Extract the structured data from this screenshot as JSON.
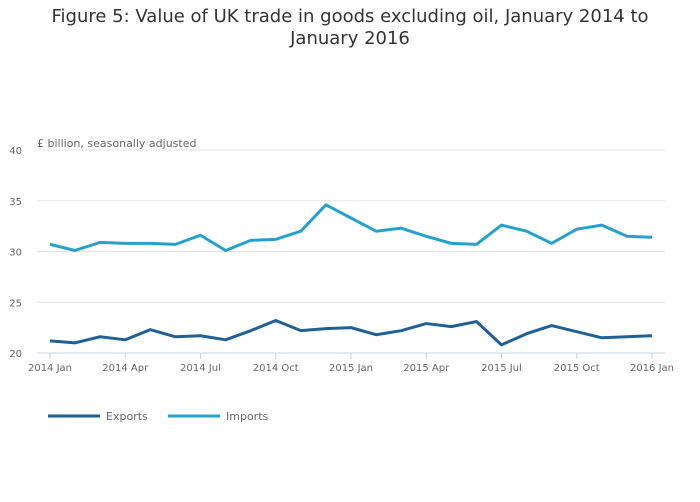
{
  "chart_data": {
    "type": "line",
    "title": "Figure 5: Value of UK trade in goods excluding oil, January 2014 to January 2016",
    "ylabel": "£ billion, seasonally adjusted",
    "xlabel": "",
    "ylim": [
      20,
      40
    ],
    "yticks": [
      20,
      25,
      30,
      35,
      40
    ],
    "grid": true,
    "legend_position": "bottom-left",
    "x": [
      "2014 Jan",
      "2014 Feb",
      "2014 Mar",
      "2014 Apr",
      "2014 May",
      "2014 Jun",
      "2014 Jul",
      "2014 Aug",
      "2014 Sep",
      "2014 Oct",
      "2014 Nov",
      "2014 Dec",
      "2015 Jan",
      "2015 Feb",
      "2015 Mar",
      "2015 Apr",
      "2015 May",
      "2015 Jun",
      "2015 Jul",
      "2015 Aug",
      "2015 Sep",
      "2015 Oct",
      "2015 Nov",
      "2015 Dec",
      "2016 Jan"
    ],
    "xtick_labels": [
      "2014 Jan",
      "2014 Apr",
      "2014 Jul",
      "2014 Oct",
      "2015 Jan",
      "2015 Apr",
      "2015 Jul",
      "2015 Oct",
      "2016 Jan"
    ],
    "series": [
      {
        "name": "Exports",
        "color": "#206095",
        "values": [
          21.2,
          21.0,
          21.6,
          21.3,
          22.3,
          21.6,
          21.7,
          21.3,
          22.2,
          23.2,
          22.2,
          22.4,
          22.5,
          21.8,
          22.2,
          22.9,
          22.6,
          23.1,
          20.8,
          21.9,
          22.7,
          22.1,
          21.5,
          21.6,
          21.7
        ]
      },
      {
        "name": "Imports",
        "color": "#27a0cc",
        "values": [
          30.7,
          30.1,
          30.9,
          30.8,
          30.8,
          30.7,
          31.6,
          30.1,
          31.1,
          31.2,
          32.0,
          34.6,
          33.3,
          32.0,
          32.3,
          31.5,
          30.8,
          30.7,
          32.6,
          32.0,
          30.8,
          32.2,
          32.6,
          31.5,
          31.4
        ]
      }
    ]
  }
}
